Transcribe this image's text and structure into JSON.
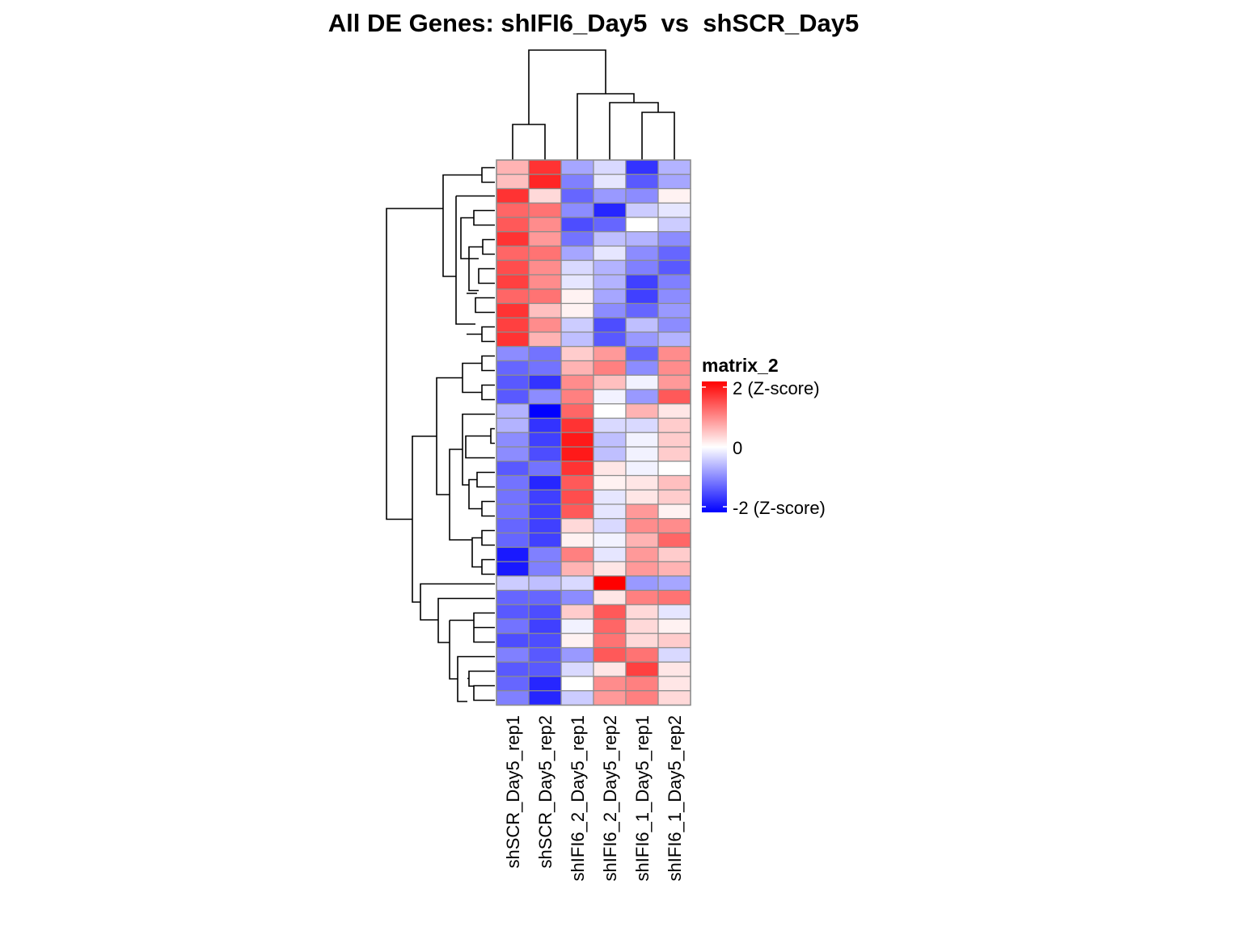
{
  "chart_data": {
    "type": "heatmap",
    "title": "All DE Genes: shIFI6_Day5  vs  shSCR_Day5",
    "columns": [
      "shSCR_Day5_rep1",
      "shSCR_Day5_rep2",
      "shIFI6_2_Day5_rep1",
      "shIFI6_2_Day5_rep2",
      "shIFI6_1_Day5_rep1",
      "shIFI6_1_Day5_rep2"
    ],
    "row_count": 38,
    "values": [
      [
        0.6,
        1.6,
        -0.7,
        -0.3,
        -1.6,
        -0.6
      ],
      [
        0.5,
        1.7,
        -1.0,
        -0.2,
        -1.3,
        -0.7
      ],
      [
        1.6,
        0.3,
        -1.2,
        -0.8,
        -0.9,
        0.1
      ],
      [
        1.2,
        1.1,
        -0.9,
        -1.7,
        -0.4,
        -0.2
      ],
      [
        1.3,
        0.9,
        -1.4,
        -1.2,
        0.0,
        -0.4
      ],
      [
        1.6,
        0.8,
        -1.1,
        -0.5,
        -0.6,
        -0.9
      ],
      [
        1.2,
        1.1,
        -0.7,
        -0.2,
        -0.9,
        -1.2
      ],
      [
        1.4,
        0.9,
        -0.3,
        -0.6,
        -1.0,
        -1.3
      ],
      [
        1.5,
        0.9,
        -0.2,
        -0.6,
        -1.5,
        -1.0
      ],
      [
        1.2,
        1.1,
        0.1,
        -0.7,
        -1.5,
        -0.9
      ],
      [
        1.6,
        0.5,
        0.1,
        -0.9,
        -1.2,
        -0.8
      ],
      [
        1.5,
        0.9,
        -0.4,
        -1.4,
        -0.5,
        -0.9
      ],
      [
        1.6,
        0.6,
        -0.5,
        -1.3,
        -0.8,
        -0.6
      ],
      [
        -0.9,
        -1.1,
        0.4,
        0.8,
        -1.2,
        0.9
      ],
      [
        -1.2,
        -1.1,
        0.6,
        1.0,
        -0.9,
        0.9
      ],
      [
        -1.3,
        -1.6,
        0.9,
        0.5,
        -0.1,
        0.8
      ],
      [
        -1.3,
        -0.9,
        1.0,
        -0.1,
        -0.8,
        1.3
      ],
      [
        -0.6,
        -2.0,
        1.2,
        0.0,
        0.6,
        0.2
      ],
      [
        -0.6,
        -1.6,
        1.6,
        -0.3,
        -0.3,
        0.4
      ],
      [
        -0.9,
        -1.5,
        1.8,
        -0.5,
        -0.1,
        0.4
      ],
      [
        -0.9,
        -1.4,
        1.8,
        -0.5,
        -0.1,
        0.4
      ],
      [
        -1.3,
        -1.1,
        1.6,
        0.2,
        -0.1,
        0.0
      ],
      [
        -1.1,
        -1.7,
        1.3,
        0.1,
        0.2,
        0.5
      ],
      [
        -1.1,
        -1.5,
        1.4,
        -0.2,
        0.2,
        0.4
      ],
      [
        -1.1,
        -1.5,
        1.3,
        -0.2,
        0.8,
        0.1
      ],
      [
        -1.2,
        -1.5,
        0.3,
        -0.3,
        0.9,
        0.9
      ],
      [
        -1.2,
        -1.5,
        0.1,
        -0.1,
        0.6,
        1.2
      ],
      [
        -1.8,
        -1.0,
        1.0,
        -0.2,
        0.8,
        0.4
      ],
      [
        -1.8,
        -1.0,
        0.6,
        0.2,
        0.8,
        0.6
      ],
      [
        -0.4,
        -0.5,
        -0.3,
        2.0,
        -0.8,
        -0.7
      ],
      [
        -1.2,
        -1.2,
        -0.9,
        0.2,
        1.0,
        1.1
      ],
      [
        -1.3,
        -1.4,
        0.4,
        1.3,
        0.3,
        -0.2
      ],
      [
        -1.1,
        -1.5,
        -0.1,
        1.2,
        0.3,
        0.1
      ],
      [
        -1.4,
        -1.4,
        0.1,
        1.1,
        0.3,
        0.4
      ],
      [
        -1.0,
        -1.3,
        -0.8,
        1.3,
        1.1,
        -0.3
      ],
      [
        -1.3,
        -1.3,
        -0.3,
        0.2,
        1.5,
        0.2
      ],
      [
        -1.2,
        -1.7,
        0.0,
        0.9,
        1.0,
        0.2
      ],
      [
        -1.0,
        -1.7,
        -0.4,
        0.8,
        1.0,
        0.3
      ]
    ],
    "color_scale": {
      "min": -2,
      "mid": 0,
      "max": 2,
      "low_color": "#0000ff",
      "mid_color": "#ffffff",
      "high_color": "#ff0000"
    },
    "legend": {
      "title": "matrix_2",
      "ticks": [
        {
          "value": 2,
          "label": "2 (Z-score)"
        },
        {
          "value": 0,
          "label": "0"
        },
        {
          "value": -2,
          "label": "-2 (Z-score)"
        }
      ],
      "placement": "right"
    },
    "column_dendrogram": {
      "order": [
        0,
        1,
        2,
        3,
        4,
        5
      ],
      "groups": [
        [
          0,
          1
        ],
        [
          2,
          [
            3,
            [
              4,
              5
            ]
          ]
        ]
      ]
    },
    "row_dendrogram": {
      "top_cluster_rows": 13,
      "bottom_cluster_rows": 25
    }
  }
}
